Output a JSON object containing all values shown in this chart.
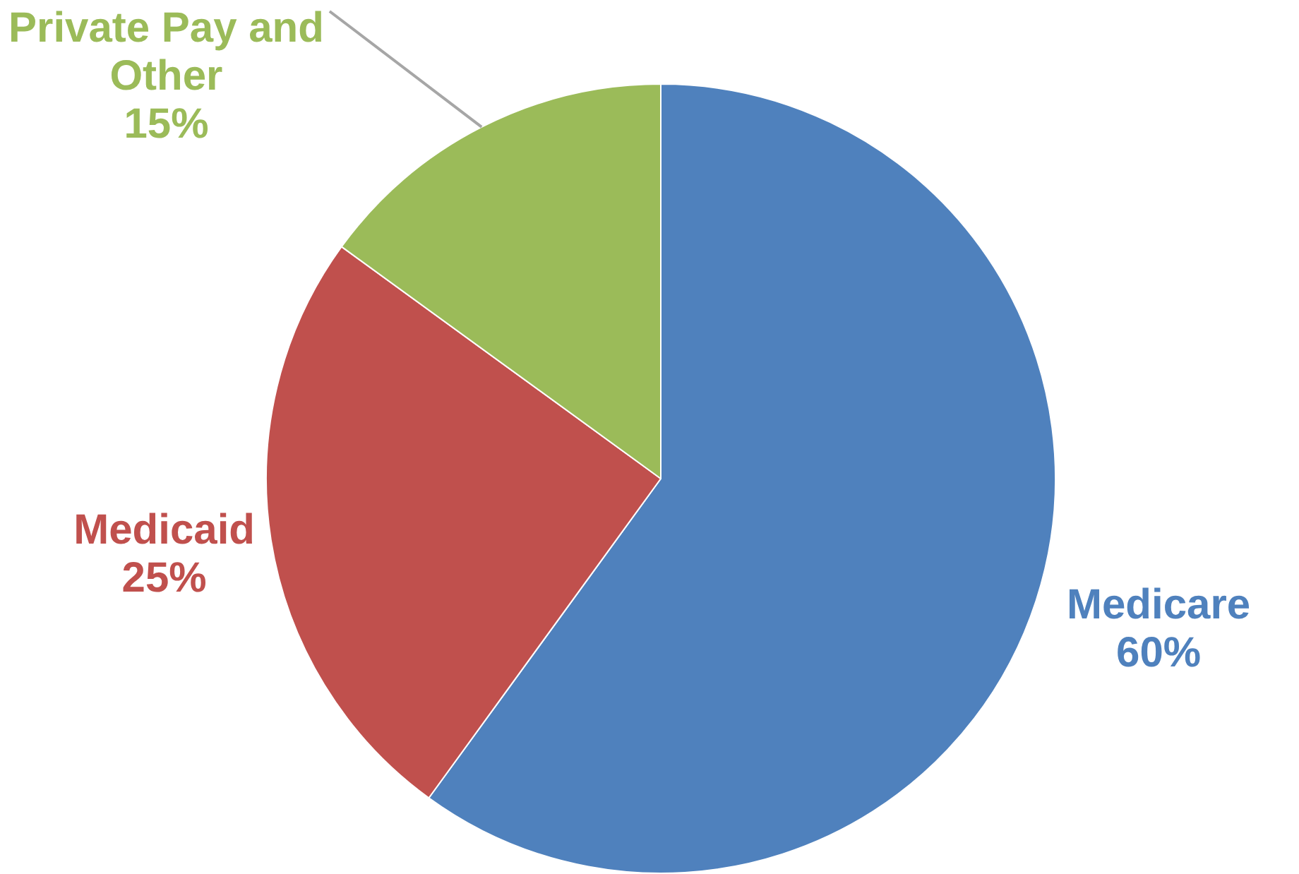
{
  "chart_data": {
    "type": "pie",
    "categories": [
      "Medicare",
      "Medicaid",
      "Private Pay and Other"
    ],
    "values": [
      60,
      25,
      15
    ],
    "value_labels": [
      "60%",
      "25%",
      "15%"
    ],
    "colors": [
      "#4f81bd",
      "#c0504d",
      "#9bbb59"
    ],
    "legend": false
  }
}
